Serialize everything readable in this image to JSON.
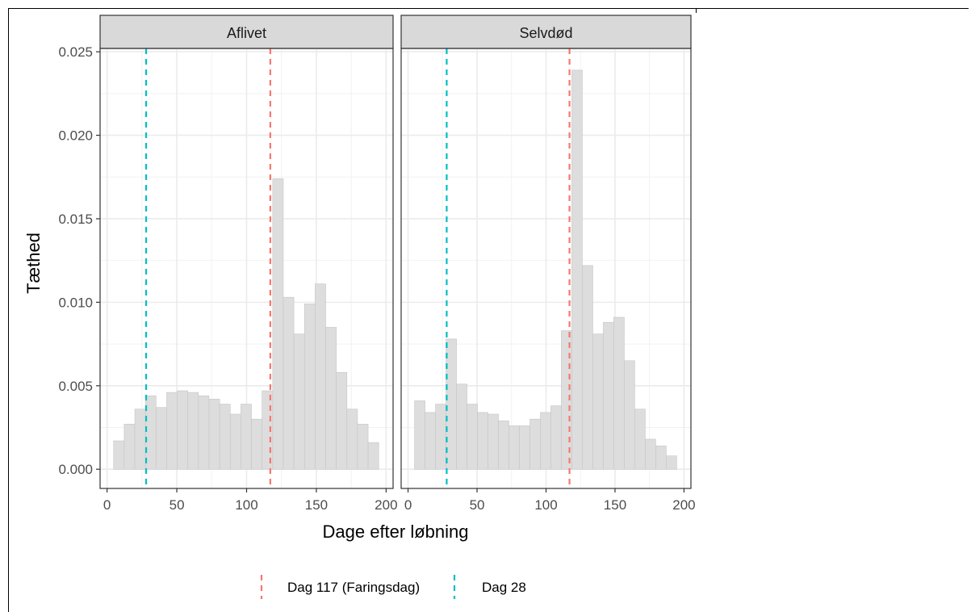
{
  "chart_data": {
    "type": "bar",
    "xlabel": "Dage efter løbning",
    "ylabel": "Tæthed",
    "xlim": [
      -5,
      205
    ],
    "ylim": [
      -0.00115,
      0.0252
    ],
    "xticks": [
      0,
      50,
      100,
      150,
      200
    ],
    "yticks": [
      0.0,
      0.005,
      0.01,
      0.015,
      0.02,
      0.025
    ],
    "ytick_labels": [
      "0.000",
      "0.005",
      "0.010",
      "0.015",
      "0.020",
      "0.025"
    ],
    "xtick_labels": [
      "0",
      "50",
      "100",
      "150",
      "200"
    ],
    "grid": true,
    "bin_width": 7.6,
    "bin_centers": [
      8.5,
      16.1,
      23.7,
      31.3,
      38.9,
      46.5,
      54.1,
      61.7,
      69.3,
      76.9,
      84.5,
      92.1,
      99.7,
      107.3,
      114.9,
      122.5,
      130.1,
      137.7,
      145.3,
      152.9,
      160.5,
      168.1,
      175.7,
      183.3,
      190.9
    ],
    "panels": [
      {
        "strip": "Aflivet",
        "values": [
          0.0017,
          0.0027,
          0.0036,
          0.0044,
          0.0037,
          0.0046,
          0.0047,
          0.0046,
          0.0044,
          0.0042,
          0.0039,
          0.0033,
          0.0039,
          0.003,
          0.0047,
          0.0174,
          0.0103,
          0.0081,
          0.0099,
          0.0111,
          0.0085,
          0.0058,
          0.0036,
          0.0027,
          0.0016
        ]
      },
      {
        "strip": "Selvdød",
        "values": [
          0.0041,
          0.0034,
          0.0039,
          0.0078,
          0.0051,
          0.0039,
          0.0034,
          0.0033,
          0.0029,
          0.0026,
          0.0026,
          0.003,
          0.0034,
          0.0038,
          0.0083,
          0.0239,
          0.0122,
          0.0081,
          0.0088,
          0.0091,
          0.0065,
          0.0036,
          0.0018,
          0.0014,
          0.0008
        ]
      }
    ],
    "vlines": [
      {
        "x": 117,
        "label": "Dag 117 (Faringsdag)",
        "color": "#F8766D"
      },
      {
        "x": 28,
        "label": "Dag 28",
        "color": "#00BFC4"
      }
    ],
    "legend": {
      "position": "bottom"
    },
    "bar_fill": "#dddddd",
    "bar_stroke": "#c6c6c6"
  }
}
